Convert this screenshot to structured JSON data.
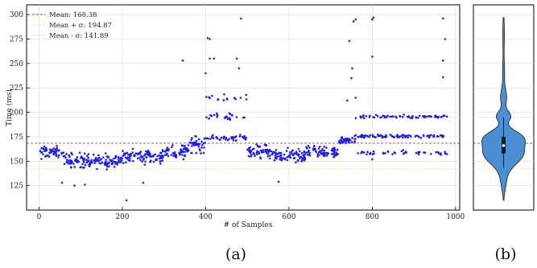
{
  "chart_data": [
    {
      "type": "scatter",
      "xlabel": "# of Samples",
      "ylabel": "Time (ms)",
      "xlim": [
        -30,
        1010
      ],
      "ylim": [
        100,
        310
      ],
      "x_ticks": [
        0,
        200,
        400,
        600,
        800,
        1000
      ],
      "y_ticks": [
        125,
        150,
        175,
        200,
        225,
        250,
        275,
        300
      ],
      "grid": true,
      "legend_placement": "top-left",
      "point_color": "#1f1fe6",
      "series": [
        {
          "name": "Mean: 168.38",
          "kind": "hline",
          "value": 168.38,
          "color": "#e02020",
          "style": "dashed"
        },
        {
          "name": "Mean + σ: 194.87",
          "kind": "hline",
          "value": 194.87,
          "color": "#f2c27a",
          "style": "dotted"
        },
        {
          "name": "Mean - σ: 141.89",
          "kind": "hline",
          "value": 141.89,
          "color": "#f2c27a",
          "style": "dotted"
        }
      ],
      "clusters": [
        {
          "x": [
            0,
            60
          ],
          "y": [
            150,
            168
          ]
        },
        {
          "x": [
            60,
            120
          ],
          "y": [
            140,
            162
          ]
        },
        {
          "x": [
            120,
            200
          ],
          "y": [
            140,
            160
          ]
        },
        {
          "x": [
            200,
            300
          ],
          "y": [
            145,
            165
          ]
        },
        {
          "x": [
            300,
            360
          ],
          "y": [
            150,
            170
          ]
        },
        {
          "x": [
            360,
            400
          ],
          "y": [
            155,
            180
          ]
        },
        {
          "x": [
            400,
            500
          ],
          "y": [
            170,
            178
          ],
          "frac": 0.4
        },
        {
          "x": [
            400,
            500
          ],
          "y": [
            190,
            200
          ],
          "frac": 0.25
        },
        {
          "x": [
            400,
            500
          ],
          "y": [
            210,
            220
          ],
          "frac": 0.15
        },
        {
          "x": [
            500,
            560
          ],
          "y": [
            150,
            170
          ]
        },
        {
          "x": [
            560,
            640
          ],
          "y": [
            145,
            165
          ]
        },
        {
          "x": [
            640,
            720
          ],
          "y": [
            150,
            168
          ]
        },
        {
          "x": [
            720,
            760
          ],
          "y": [
            165,
            178
          ]
        },
        {
          "x": [
            760,
            980
          ],
          "y": [
            173,
            178
          ],
          "frac": 0.4
        },
        {
          "x": [
            760,
            980
          ],
          "y": [
            193,
            198
          ],
          "frac": 0.3
        },
        {
          "x": [
            760,
            980
          ],
          "y": [
            155,
            162
          ],
          "frac": 0.2
        }
      ],
      "outliers": [
        [
          210,
          110
        ],
        [
          345,
          253
        ],
        [
          405,
          276
        ],
        [
          410,
          275
        ],
        [
          485,
          296
        ],
        [
          400,
          240
        ],
        [
          410,
          255
        ],
        [
          420,
          255
        ],
        [
          475,
          255
        ],
        [
          480,
          245
        ],
        [
          755,
          293
        ],
        [
          760,
          295
        ],
        [
          800,
          295
        ],
        [
          803,
          297
        ],
        [
          970,
          296
        ],
        [
          975,
          275
        ],
        [
          800,
          257
        ],
        [
          970,
          253
        ],
        [
          970,
          236
        ],
        [
          750,
          235
        ],
        [
          752,
          245
        ],
        [
          745,
          273
        ],
        [
          740,
          212
        ],
        [
          760,
          215
        ],
        [
          85,
          125
        ],
        [
          110,
          126
        ],
        [
          55,
          128
        ],
        [
          250,
          128
        ],
        [
          575,
          129
        ],
        [
          800,
          152
        ]
      ]
    },
    {
      "type": "violin",
      "ylim": [
        100,
        310
      ],
      "median": 166,
      "q1": 158,
      "q3": 175,
      "min": 110,
      "max": 297,
      "fill_color": "#4a8fd4",
      "lines": [
        {
          "value": 168.38,
          "color": "#e02020",
          "style": "dashed"
        },
        {
          "value": 194.87,
          "color": "#f2c27a",
          "style": "dotted"
        },
        {
          "value": 141.89,
          "color": "#f2c27a",
          "style": "dotted"
        }
      ]
    }
  ],
  "captions": {
    "a": "(a)",
    "b": "(b)"
  }
}
